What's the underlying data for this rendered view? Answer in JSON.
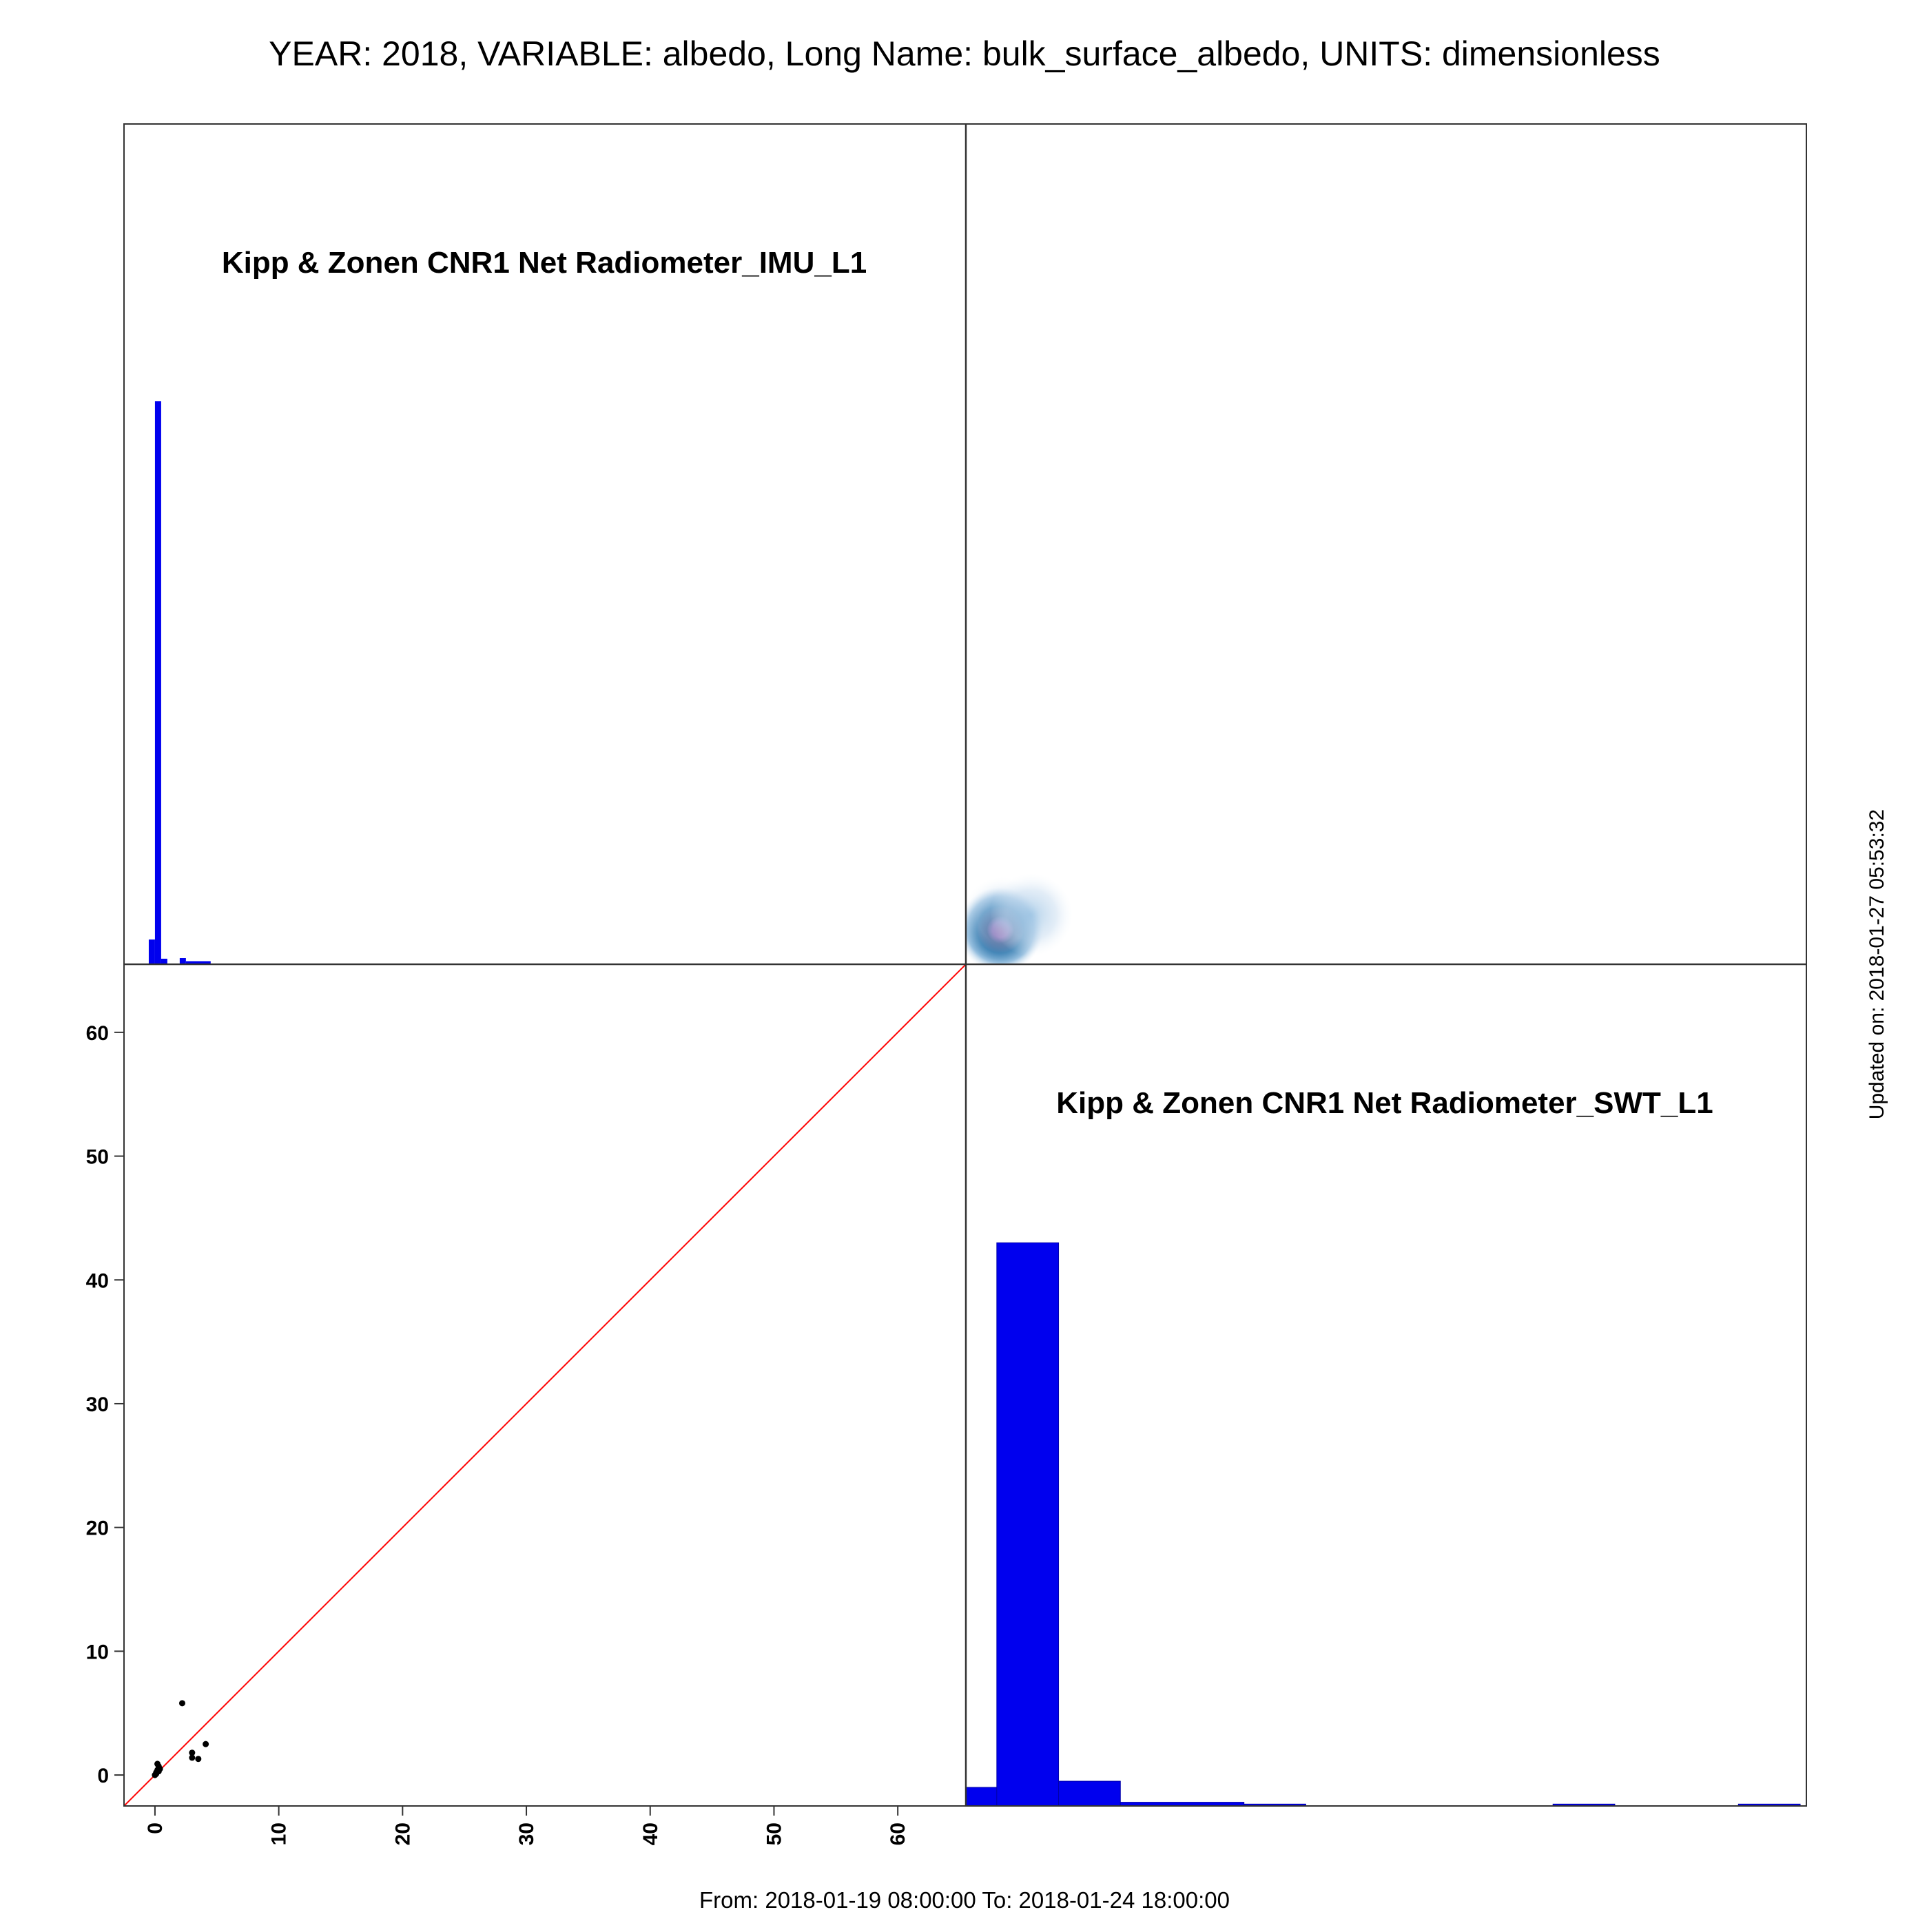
{
  "title": "YEAR: 2018, VARIABLE: albedo, Long Name: bulk_surface_albedo, UNITS: dimensionless",
  "footer_range": "From: 2018-01-19 08:00:00 To: 2018-01-24 18:00:00",
  "updated_on": "Updated on: 2018-01-27 05:53:32",
  "colors": {
    "histogram": "#0000ee",
    "identity_line": "#ff0000",
    "points": "#000000",
    "frame": "#333333"
  },
  "chart_data": [
    {
      "type": "bar",
      "panel": "top-left",
      "label": "Kipp & Zonen CNR1 Net Radiometer_IMU_L1",
      "bins": [
        {
          "x0": -0.5,
          "x1": 0.0,
          "height": 2.0
        },
        {
          "x0": 0.0,
          "x1": 0.5,
          "height": 45.5
        },
        {
          "x0": 0.5,
          "x1": 1.0,
          "height": 0.45
        },
        {
          "x0": 2.0,
          "x1": 2.5,
          "height": 0.5
        },
        {
          "x0": 2.5,
          "x1": 4.5,
          "height": 0.25
        }
      ]
    },
    {
      "type": "heatmap",
      "panel": "top-right",
      "label": "",
      "hotspots": [
        {
          "x": 0.3,
          "y": 0.3,
          "intensity": 1.0
        },
        {
          "x": 0.5,
          "y": 1.2,
          "intensity": 0.25
        },
        {
          "x": 2.8,
          "y": 1.5,
          "intensity": 0.2
        }
      ]
    },
    {
      "type": "scatter",
      "panel": "bottom-left",
      "label": "",
      "xlim": [
        -2.5,
        65.5
      ],
      "ylim": [
        -2.5,
        65.5
      ],
      "x_ticks": [
        0,
        10,
        20,
        30,
        40,
        50,
        60
      ],
      "y_ticks": [
        0,
        10,
        20,
        30,
        40,
        50,
        60
      ],
      "identity_line": true,
      "points": [
        {
          "x": 0.0,
          "y": 0.0
        },
        {
          "x": 0.1,
          "y": 0.2
        },
        {
          "x": 0.2,
          "y": 0.4
        },
        {
          "x": 0.3,
          "y": 0.7
        },
        {
          "x": 0.2,
          "y": 0.9
        },
        {
          "x": 0.4,
          "y": 0.5
        },
        {
          "x": 0.1,
          "y": 0.1
        },
        {
          "x": 0.3,
          "y": 0.3
        },
        {
          "x": 2.2,
          "y": 5.8
        },
        {
          "x": 3.0,
          "y": 1.8
        },
        {
          "x": 3.5,
          "y": 1.3
        },
        {
          "x": 3.0,
          "y": 1.4
        },
        {
          "x": 4.1,
          "y": 2.5
        }
      ]
    },
    {
      "type": "bar",
      "panel": "bottom-right",
      "label": "Kipp & Zonen CNR1 Net Radiometer_SWT_L1",
      "bins": [
        {
          "x0": -2.5,
          "x1": 0.0,
          "height": 1.5
        },
        {
          "x0": 0.0,
          "x1": 5.0,
          "height": 45.5
        },
        {
          "x0": 5.0,
          "x1": 10.0,
          "height": 2.0
        },
        {
          "x0": 10.0,
          "x1": 20.0,
          "height": 0.3
        },
        {
          "x0": 20.0,
          "x1": 25.0,
          "height": 0.15
        },
        {
          "x0": 45.0,
          "x1": 50.0,
          "height": 0.15
        },
        {
          "x0": 60.0,
          "x1": 65.0,
          "height": 0.15
        }
      ]
    }
  ]
}
